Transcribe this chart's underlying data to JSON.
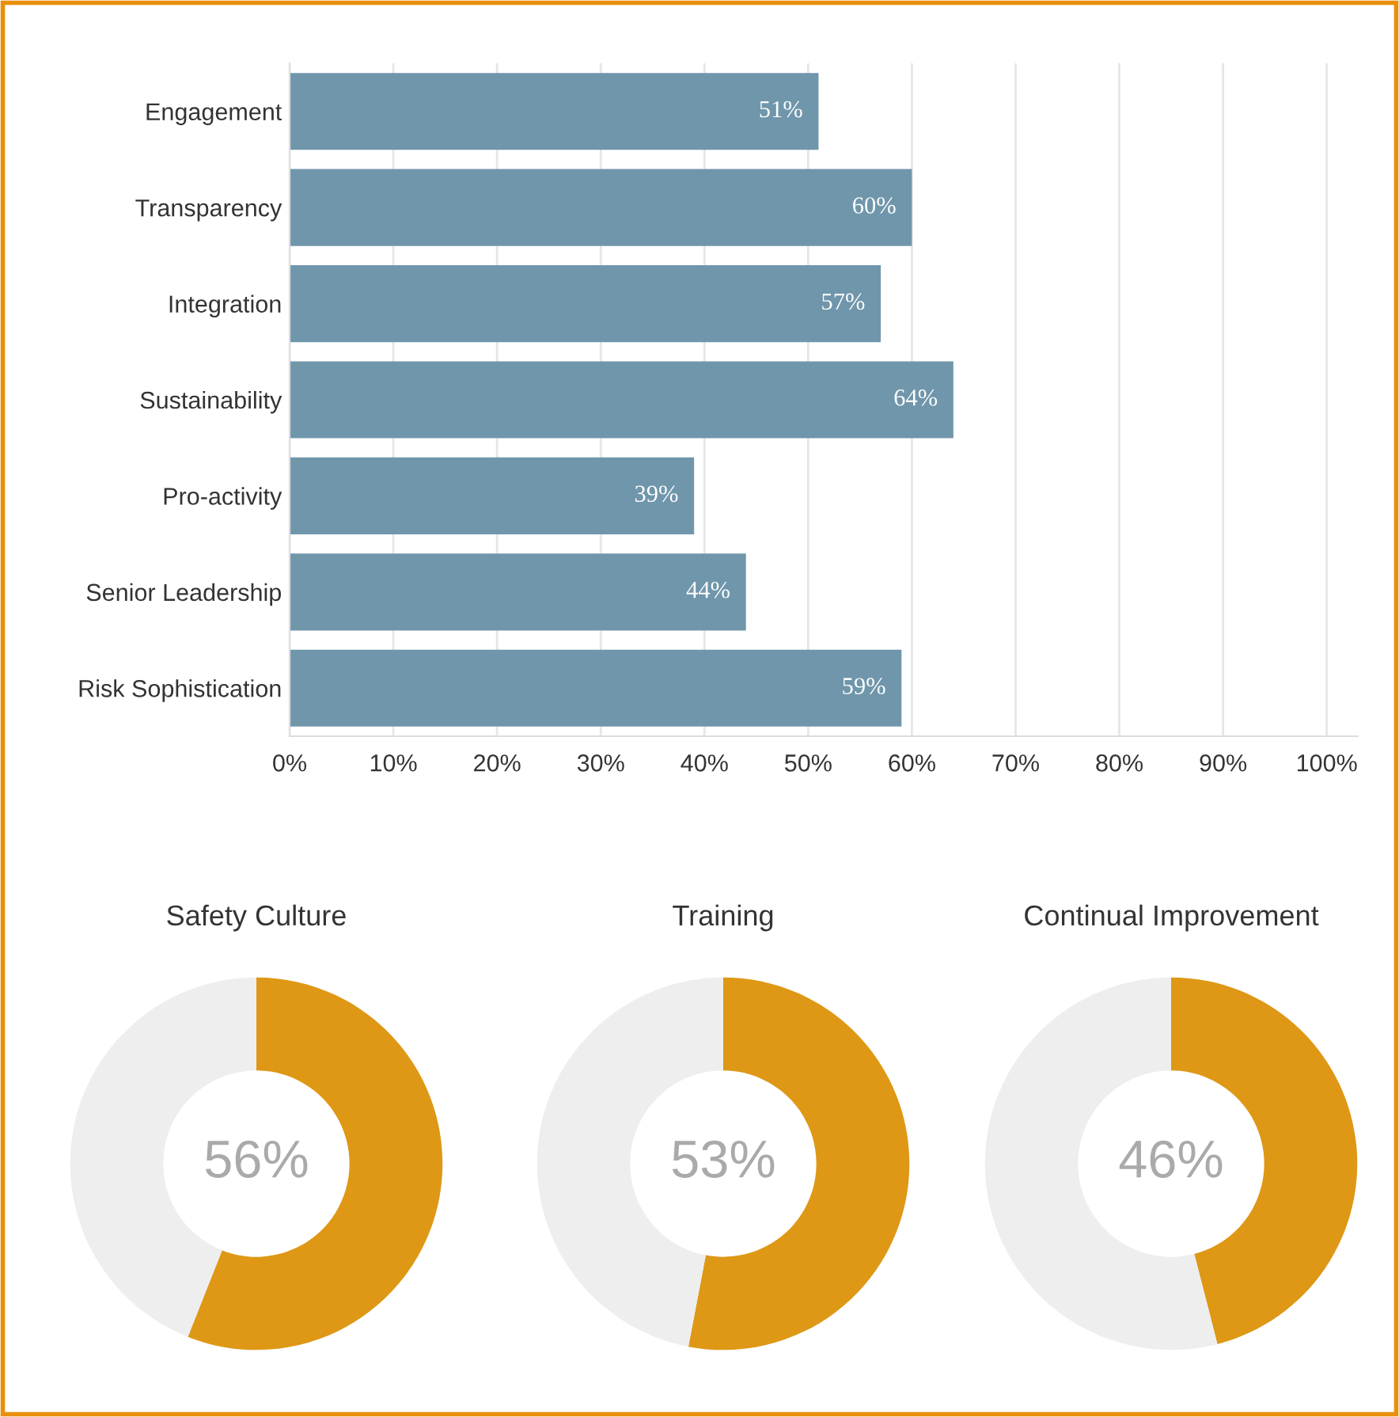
{
  "chart_data": [
    {
      "type": "bar",
      "orientation": "horizontal",
      "categories": [
        "Engagement",
        "Transparency",
        "Integration",
        "Sustainability",
        "Pro-activity",
        "Senior Leadership",
        "Risk Sophistication"
      ],
      "values": [
        51,
        60,
        57,
        64,
        39,
        44,
        59
      ],
      "color": "#7096ab",
      "value_labels": [
        "51%",
        "60%",
        "57%",
        "64%",
        "39%",
        "44%",
        "59%"
      ],
      "xlim": [
        0,
        103
      ],
      "xticks": [
        {
          "value": 0,
          "label": "0%"
        },
        {
          "value": 10,
          "label": "10%"
        },
        {
          "value": 20,
          "label": "20%"
        },
        {
          "value": 30,
          "label": "30%"
        },
        {
          "value": 40,
          "label": "40%"
        },
        {
          "value": 50,
          "label": "50%"
        },
        {
          "value": 60,
          "label": "60%"
        },
        {
          "value": 70,
          "label": "70%"
        },
        {
          "value": 80,
          "label": "80%"
        },
        {
          "value": 90,
          "label": "90%"
        },
        {
          "value": 100,
          "label": "100%"
        }
      ],
      "grid": "x",
      "legend": false
    },
    {
      "type": "donut",
      "title": "Safety Culture",
      "categories": [
        null,
        null
      ],
      "values": [
        56,
        44
      ],
      "colors": [
        "#de9816",
        "#eeeeee"
      ],
      "value_labels": [
        "56%",
        null
      ],
      "legend": false
    },
    {
      "type": "donut",
      "title": "Training",
      "categories": [
        null,
        null
      ],
      "values": [
        53,
        47
      ],
      "colors": [
        "#de9816",
        "#eeeeee"
      ],
      "value_labels": [
        "53%",
        null
      ],
      "legend": false
    },
    {
      "type": "donut",
      "title": "Continual Improvement",
      "categories": [
        null,
        null
      ],
      "values": [
        46,
        54
      ],
      "colors": [
        "#de9816",
        "#eeeeee"
      ],
      "value_labels": [
        "46%",
        null
      ],
      "legend": false
    }
  ]
}
